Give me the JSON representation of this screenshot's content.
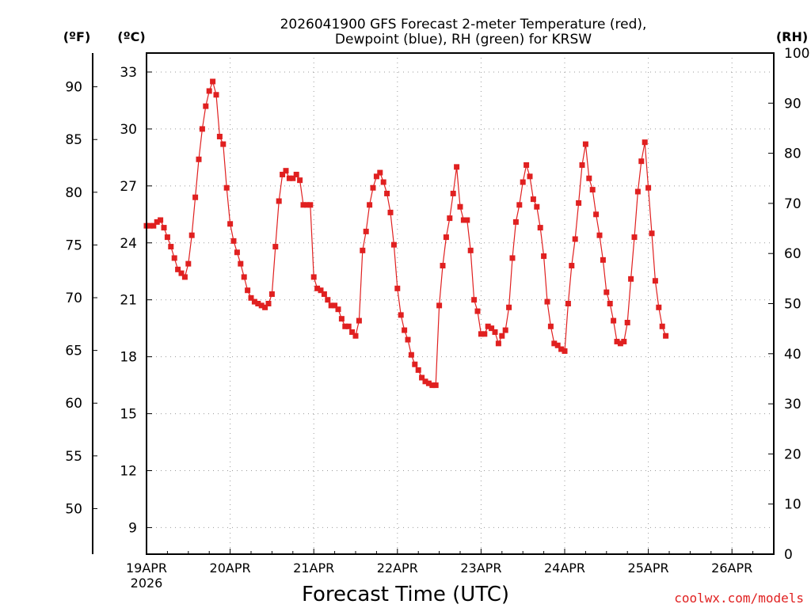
{
  "chart_data": {
    "type": "line",
    "title_line1": "2026041900 GFS Forecast 2-meter Temperature (red),",
    "title_line2": "Dewpoint (blue), RH (green) for KRSW",
    "xlabel": "Forecast Time (UTC)",
    "credit": "coolwx.com/models",
    "unit_f": "(ºF)",
    "unit_c": "(ºC)",
    "unit_rh": "(RH)",
    "x_range_hours": [
      0,
      180
    ],
    "c_range": [
      7.6,
      34.0
    ],
    "rh_range": [
      0,
      100
    ],
    "x_ticks": [
      {
        "hour": 0,
        "label": "19APR"
      },
      {
        "hour": 24,
        "label": "20APR"
      },
      {
        "hour": 48,
        "label": "21APR"
      },
      {
        "hour": 72,
        "label": "22APR"
      },
      {
        "hour": 96,
        "label": "23APR"
      },
      {
        "hour": 120,
        "label": "24APR"
      },
      {
        "hour": 144,
        "label": "25APR"
      },
      {
        "hour": 168,
        "label": "26APR"
      }
    ],
    "x_year_label": "2026",
    "c_ticks": [
      "9",
      "12",
      "15",
      "18",
      "21",
      "24",
      "27",
      "30",
      "33"
    ],
    "f_ticks": [
      "50",
      "55",
      "60",
      "65",
      "70",
      "75",
      "80",
      "85",
      "90"
    ],
    "rh_ticks": [
      "0",
      "10",
      "20",
      "30",
      "40",
      "50",
      "60",
      "70",
      "80",
      "90",
      "100"
    ],
    "colors": {
      "temperature": "#e02020",
      "dewpoint": "#1f3fd8",
      "rh": "#10c010",
      "grid": "#9a9a9a"
    },
    "series": [
      {
        "name": "2-meter Temperature (°C)",
        "color": "#e02020",
        "marker": "filled-square",
        "points": [
          [
            0,
            24.9
          ],
          [
            1,
            24.9
          ],
          [
            2,
            24.9
          ],
          [
            3,
            25.1
          ],
          [
            4,
            25.2
          ],
          [
            5,
            24.8
          ],
          [
            6,
            24.3
          ],
          [
            7,
            23.8
          ],
          [
            8,
            23.2
          ],
          [
            9,
            22.6
          ],
          [
            10,
            22.4
          ],
          [
            11,
            22.2
          ],
          [
            12,
            22.9
          ],
          [
            13,
            24.4
          ],
          [
            14,
            26.4
          ],
          [
            15,
            28.4
          ],
          [
            16,
            30.0
          ],
          [
            17,
            31.2
          ],
          [
            18,
            32.0
          ],
          [
            19,
            32.5
          ],
          [
            20,
            31.8
          ],
          [
            21,
            29.6
          ],
          [
            22,
            29.2
          ],
          [
            23,
            26.9
          ],
          [
            24,
            25.0
          ],
          [
            25,
            24.1
          ],
          [
            26,
            23.5
          ],
          [
            27,
            22.9
          ],
          [
            28,
            22.2
          ],
          [
            29,
            21.5
          ],
          [
            30,
            21.1
          ],
          [
            31,
            20.9
          ],
          [
            32,
            20.8
          ],
          [
            33,
            20.7
          ],
          [
            34,
            20.6
          ],
          [
            35,
            20.8
          ],
          [
            36,
            21.3
          ],
          [
            37,
            23.8
          ],
          [
            38,
            26.2
          ],
          [
            39,
            27.6
          ],
          [
            40,
            27.8
          ],
          [
            41,
            27.4
          ],
          [
            42,
            27.4
          ],
          [
            43,
            27.6
          ],
          [
            44,
            27.3
          ],
          [
            45,
            26.0
          ],
          [
            46,
            26.0
          ],
          [
            47,
            26.0
          ],
          [
            48,
            22.2
          ],
          [
            49,
            21.6
          ],
          [
            50,
            21.5
          ],
          [
            51,
            21.3
          ],
          [
            52,
            21.0
          ],
          [
            53,
            20.7
          ],
          [
            54,
            20.7
          ],
          [
            55,
            20.5
          ],
          [
            56,
            20.0
          ],
          [
            57,
            19.6
          ],
          [
            58,
            19.6
          ],
          [
            59,
            19.3
          ],
          [
            60,
            19.1
          ],
          [
            61,
            19.9
          ],
          [
            62,
            23.6
          ],
          [
            63,
            24.6
          ],
          [
            64,
            26.0
          ],
          [
            65,
            26.9
          ],
          [
            66,
            27.5
          ],
          [
            67,
            27.7
          ],
          [
            68,
            27.2
          ],
          [
            69,
            26.6
          ],
          [
            70,
            25.6
          ],
          [
            71,
            23.9
          ],
          [
            72,
            21.6
          ],
          [
            73,
            20.2
          ],
          [
            74,
            19.4
          ],
          [
            75,
            18.9
          ],
          [
            76,
            18.1
          ],
          [
            77,
            17.6
          ],
          [
            78,
            17.3
          ],
          [
            79,
            16.9
          ],
          [
            80,
            16.7
          ],
          [
            81,
            16.6
          ],
          [
            82,
            16.5
          ],
          [
            83,
            16.5
          ],
          [
            84,
            20.7
          ],
          [
            85,
            22.8
          ],
          [
            86,
            24.3
          ],
          [
            87,
            25.3
          ],
          [
            88,
            26.6
          ],
          [
            89,
            28.0
          ],
          [
            90,
            25.9
          ],
          [
            91,
            25.2
          ],
          [
            92,
            25.2
          ],
          [
            93,
            23.6
          ],
          [
            94,
            21.0
          ],
          [
            95,
            20.4
          ],
          [
            96,
            19.2
          ],
          [
            97,
            19.2
          ],
          [
            98,
            19.6
          ],
          [
            99,
            19.5
          ],
          [
            100,
            19.3
          ],
          [
            101,
            18.7
          ],
          [
            102,
            19.1
          ],
          [
            103,
            19.4
          ],
          [
            104,
            20.6
          ],
          [
            105,
            23.2
          ],
          [
            106,
            25.1
          ],
          [
            107,
            26.0
          ],
          [
            108,
            27.2
          ],
          [
            109,
            28.1
          ],
          [
            110,
            27.5
          ],
          [
            111,
            26.3
          ],
          [
            112,
            25.9
          ],
          [
            113,
            24.8
          ],
          [
            114,
            23.3
          ],
          [
            115,
            20.9
          ],
          [
            116,
            19.6
          ],
          [
            117,
            18.7
          ],
          [
            118,
            18.6
          ],
          [
            119,
            18.4
          ],
          [
            120,
            18.3
          ],
          [
            121,
            20.8
          ],
          [
            122,
            22.8
          ],
          [
            123,
            24.2
          ],
          [
            124,
            26.1
          ],
          [
            125,
            28.1
          ],
          [
            126,
            29.2
          ],
          [
            127,
            27.4
          ],
          [
            128,
            26.8
          ],
          [
            129,
            25.5
          ],
          [
            130,
            24.4
          ],
          [
            131,
            23.1
          ],
          [
            132,
            21.4
          ],
          [
            133,
            20.8
          ],
          [
            134,
            19.9
          ],
          [
            135,
            18.8
          ],
          [
            136,
            18.7
          ],
          [
            137,
            18.8
          ],
          [
            138,
            19.8
          ],
          [
            139,
            22.1
          ],
          [
            140,
            24.3
          ],
          [
            141,
            26.7
          ],
          [
            142,
            28.3
          ],
          [
            143,
            29.3
          ],
          [
            144,
            26.9
          ],
          [
            145,
            24.5
          ],
          [
            146,
            22.0
          ],
          [
            147,
            20.6
          ],
          [
            148,
            19.6
          ],
          [
            149,
            19.1
          ]
        ]
      },
      {
        "name": "Dewpoint (°C)",
        "color": "#1f3fd8",
        "marker": "plus",
        "points": []
      },
      {
        "name": "RH (%)",
        "color": "#10c010",
        "marker": "open-square",
        "points": []
      }
    ]
  }
}
